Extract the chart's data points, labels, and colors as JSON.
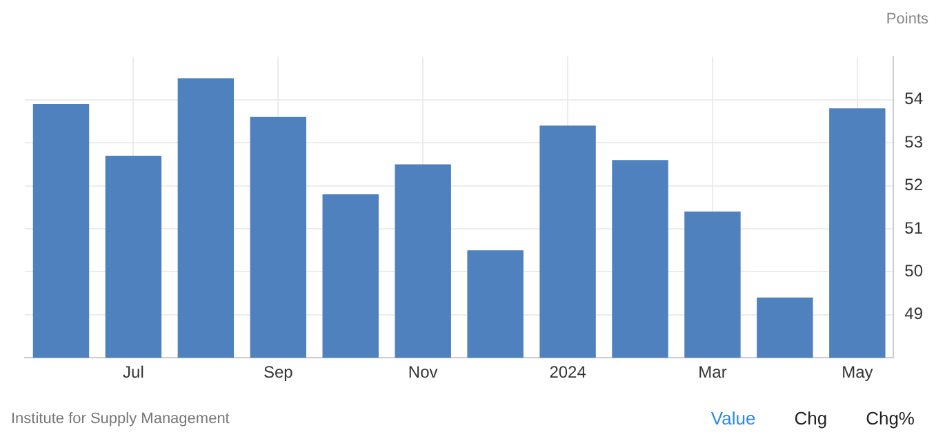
{
  "chart_data": {
    "type": "bar",
    "ylabel": "Points",
    "categories": [
      null,
      "Jul",
      null,
      "Sep",
      null,
      "Nov",
      null,
      "2024",
      null,
      "Mar",
      null,
      "May"
    ],
    "values": [
      53.9,
      52.7,
      54.5,
      53.6,
      51.8,
      52.5,
      50.5,
      53.4,
      52.6,
      51.4,
      49.4,
      53.8
    ],
    "color": "#4e81be",
    "ylim": [
      48,
      55
    ],
    "yticks": [
      49,
      50,
      51,
      52,
      53,
      54
    ],
    "grid": true,
    "legend": false,
    "annotations": [
      "Institute for Supply Management",
      "Value",
      "Chg",
      "Chg%"
    ]
  }
}
